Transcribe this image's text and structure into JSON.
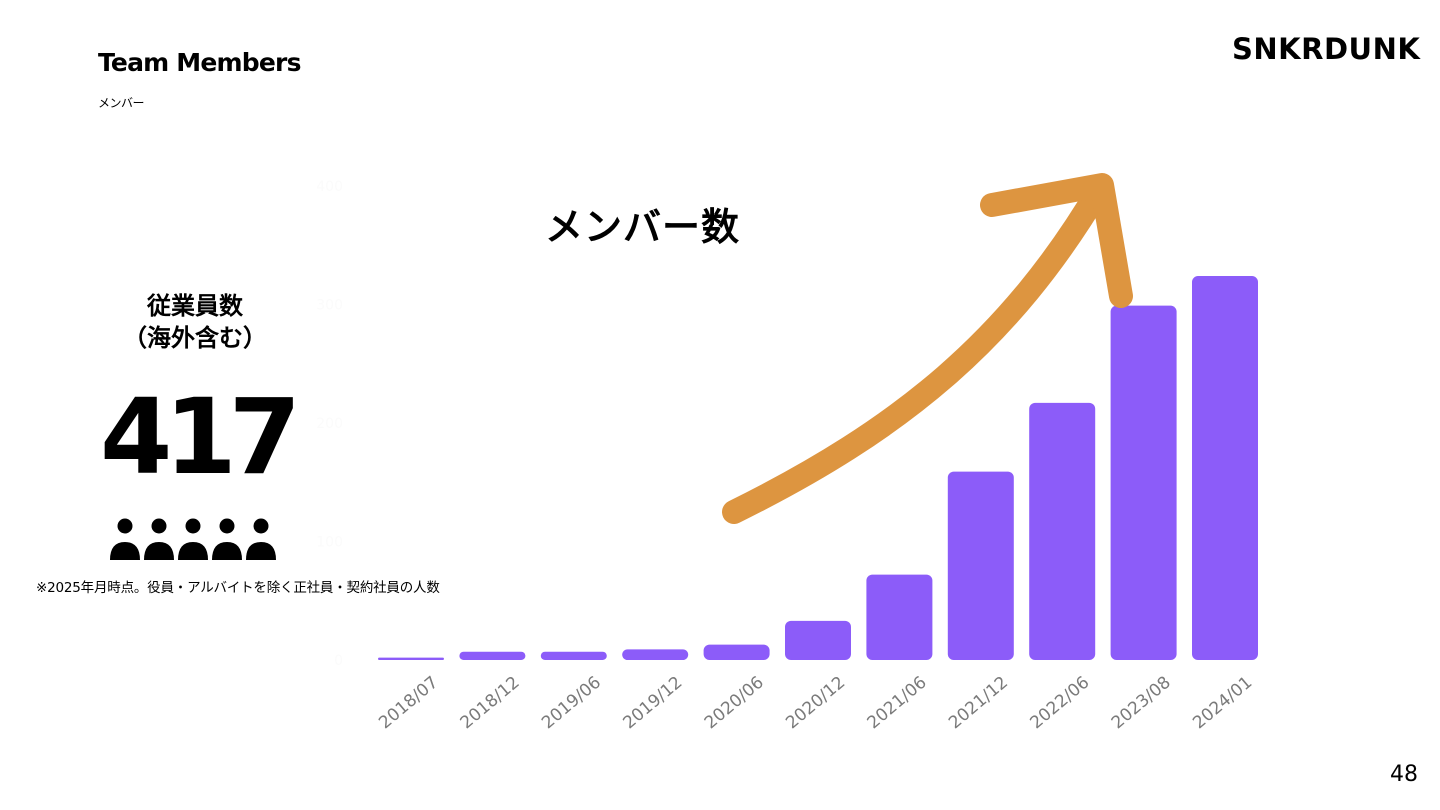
{
  "header": {
    "title": "Team Members",
    "subtitle": "メンバー",
    "logo": "SNKRDUNK"
  },
  "summary": {
    "label_line1": "従業員数",
    "label_line2": "（海外含む）",
    "total": "417",
    "icon": "people-group-icon"
  },
  "footnote": "※2025年月時点。役員・アルバイトを除く正社員・契約社員の人数",
  "page_number": "48",
  "chart_data": {
    "type": "bar",
    "title": "メンバー数",
    "categories": [
      "2018/07",
      "2018/12",
      "2019/06",
      "2019/12",
      "2020/06",
      "2020/12",
      "2021/06",
      "2021/12",
      "2022/06",
      "2023/08",
      "2024/01"
    ],
    "values": [
      2,
      7,
      7,
      9,
      13,
      33,
      72,
      159,
      217,
      299,
      324
    ],
    "y_ticks": [
      "0",
      "100",
      "200",
      "300",
      "400"
    ],
    "ylim": [
      0,
      400
    ],
    "grid": false,
    "legend": "none",
    "annotation": "upward-trend-arrow",
    "colors": {
      "bar": "#8c5cf9",
      "arrow": "#dd9540",
      "tick_label": "#fbfbfb"
    }
  }
}
